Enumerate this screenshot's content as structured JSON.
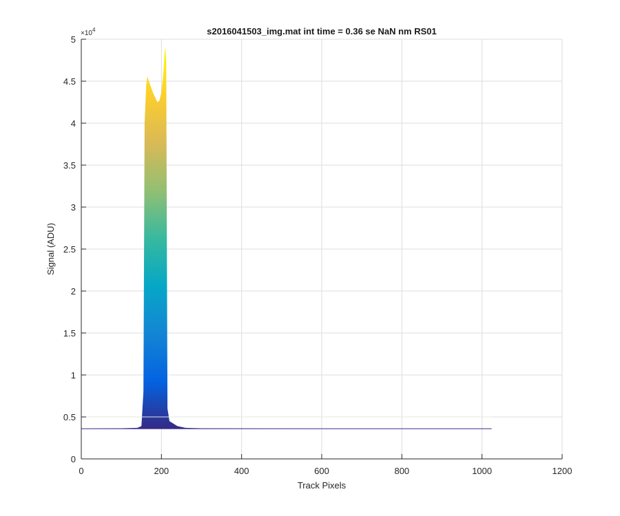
{
  "chart_data": {
    "type": "area",
    "title": "s2016041503_img.mat int time = 0.36 se  NaN nm RS01",
    "xlabel": "Track Pixels",
    "ylabel": "Signal (ADU)",
    "y_multiplier_label": "×10",
    "y_multiplier_exponent": "4",
    "xlim": [
      0,
      1200
    ],
    "ylim": [
      0,
      50000
    ],
    "grid": true,
    "colormap": [
      "#352a87",
      "#0363e1",
      "#1485d4",
      "#06a7c6",
      "#38b99e",
      "#92bf73",
      "#d9ba56",
      "#fcce2e",
      "#f9fb0e"
    ],
    "x_ticks": [
      {
        "value": 0,
        "label": "0"
      },
      {
        "value": 200,
        "label": "200"
      },
      {
        "value": 400,
        "label": "400"
      },
      {
        "value": 600,
        "label": "600"
      },
      {
        "value": 800,
        "label": "800"
      },
      {
        "value": 1000,
        "label": "1000"
      },
      {
        "value": 1200,
        "label": "1200"
      }
    ],
    "y_ticks": [
      {
        "value": 0,
        "label": "0"
      },
      {
        "value": 5000,
        "label": "0.5"
      },
      {
        "value": 10000,
        "label": "1"
      },
      {
        "value": 15000,
        "label": "1.5"
      },
      {
        "value": 20000,
        "label": "2"
      },
      {
        "value": 25000,
        "label": "2.5"
      },
      {
        "value": 30000,
        "label": "3"
      },
      {
        "value": 35000,
        "label": "3.5"
      },
      {
        "value": 40000,
        "label": "4"
      },
      {
        "value": 45000,
        "label": "4.5"
      },
      {
        "value": 50000,
        "label": "5"
      }
    ],
    "baseline": 3600,
    "secondary_level": 5000,
    "x": [
      0,
      100,
      140,
      150,
      155,
      158,
      162,
      165,
      170,
      180,
      190,
      195,
      200,
      205,
      208,
      210,
      212,
      215,
      220,
      230,
      240,
      260,
      300,
      400,
      600,
      800,
      1000,
      1024
    ],
    "y": [
      3600,
      3650,
      3700,
      3900,
      8000,
      40000,
      44500,
      45600,
      44800,
      43500,
      42500,
      42700,
      43700,
      46000,
      48500,
      49000,
      47500,
      6000,
      4500,
      4200,
      3900,
      3700,
      3650,
      3620,
      3610,
      3600,
      3600,
      3600
    ]
  }
}
